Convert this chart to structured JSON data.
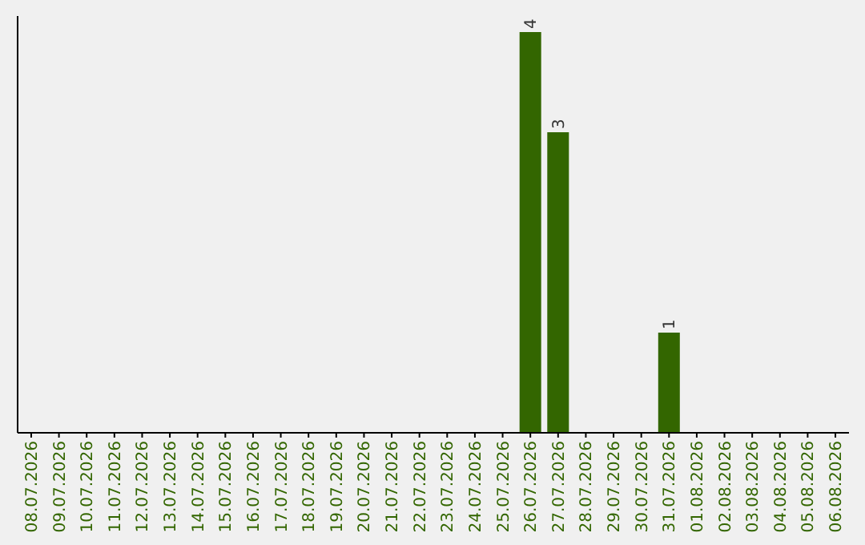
{
  "chart_data": {
    "type": "bar",
    "categories": [
      "08.07.2026",
      "09.07.2026",
      "10.07.2026",
      "11.07.2026",
      "12.07.2026",
      "13.07.2026",
      "14.07.2026",
      "15.07.2026",
      "16.07.2026",
      "17.07.2026",
      "18.07.2026",
      "19.07.2026",
      "20.07.2026",
      "21.07.2026",
      "22.07.2026",
      "23.07.2026",
      "24.07.2026",
      "25.07.2026",
      "26.07.2026",
      "27.07.2026",
      "28.07.2026",
      "29.07.2026",
      "30.07.2026",
      "31.07.2026",
      "01.08.2026",
      "02.08.2026",
      "03.08.2026",
      "04.08.2026",
      "05.08.2026",
      "06.08.2026"
    ],
    "values": [
      null,
      null,
      null,
      null,
      null,
      null,
      null,
      null,
      null,
      null,
      null,
      null,
      null,
      null,
      null,
      null,
      null,
      null,
      4,
      3,
      null,
      null,
      null,
      1,
      null,
      null,
      null,
      null,
      null,
      null
    ],
    "value_labels": [
      null,
      null,
      null,
      null,
      null,
      null,
      null,
      null,
      null,
      null,
      null,
      null,
      null,
      null,
      null,
      null,
      null,
      null,
      "4",
      "3",
      null,
      null,
      null,
      "1",
      null,
      null,
      null,
      null,
      null,
      null
    ],
    "color": "#336600"
  }
}
